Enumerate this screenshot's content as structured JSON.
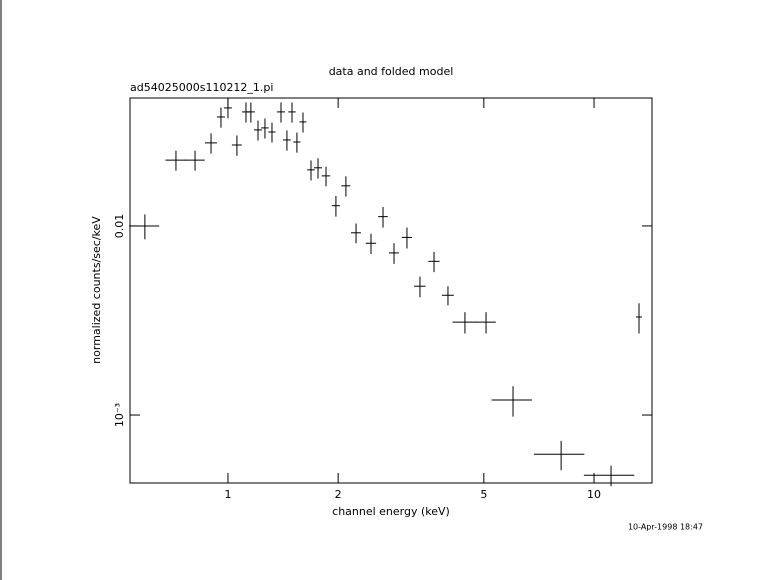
{
  "chart_data": {
    "type": "scatter",
    "title": "data and folded model",
    "subtitle": "ad54025000s110212_1.pi",
    "x_label": "channel energy (keV)",
    "y_label": "normalized counts/sec/keV",
    "annotation": "10-Apr-1998 18:47",
    "color": "#000000",
    "log_x": true,
    "log_y": true,
    "xlim": [
      0.54,
      14.4
    ],
    "ylim": [
      0.000437,
      0.0475
    ],
    "xticks": [
      1,
      2,
      5,
      10
    ],
    "yticks": [
      {
        "value": 0.001,
        "label": "10⁻³"
      },
      0.01
    ],
    "x": [
      0.593,
      0.721,
      0.813,
      0.899,
      0.957,
      1.0,
      1.058,
      1.12,
      1.155,
      1.208,
      1.262,
      1.319,
      1.396,
      1.449,
      1.496,
      1.543,
      1.603,
      1.686,
      1.762,
      1.853,
      1.972,
      2.1,
      2.238,
      2.459,
      2.652,
      2.842,
      3.083,
      3.346,
      3.655,
      3.99,
      4.44,
      5.07,
      6.008,
      8.13,
      11.13,
      13.27
    ],
    "xerr": [
      0.056,
      0.046,
      0.051,
      0.034,
      0.024,
      0.025,
      0.033,
      0.028,
      0.029,
      0.03,
      0.03,
      0.03,
      0.035,
      0.035,
      0.035,
      0.035,
      0.035,
      0.04,
      0.045,
      0.05,
      0.05,
      0.06,
      0.07,
      0.08,
      0.08,
      0.09,
      0.1,
      0.12,
      0.13,
      0.15,
      0.335,
      0.32,
      0.76,
      1.28,
      1.75,
      0.25
    ],
    "values": [
      0.01,
      0.0223,
      0.0223,
      0.0275,
      0.0377,
      0.0421,
      0.0268,
      0.0401,
      0.0401,
      0.0322,
      0.033,
      0.0314,
      0.0401,
      0.0285,
      0.0401,
      0.0278,
      0.0355,
      0.0198,
      0.0203,
      0.0184,
      0.0128,
      0.0163,
      0.0092,
      0.0081,
      0.0112,
      0.0072,
      0.0087,
      0.0048,
      0.0065,
      0.0043,
      0.0031,
      0.0031,
      0.0012,
      0.00062,
      0.00048,
      0.0033
    ],
    "yerr": [
      0.0015,
      0.0027,
      0.0027,
      0.0034,
      0.0046,
      0.005,
      0.0033,
      0.0049,
      0.0049,
      0.0039,
      0.004,
      0.0038,
      0.0049,
      0.0035,
      0.0049,
      0.0034,
      0.0043,
      0.0024,
      0.0025,
      0.0022,
      0.0016,
      0.002,
      0.0011,
      0.001,
      0.0014,
      0.0009,
      0.0011,
      0.0006,
      0.0008,
      0.0005,
      0.0004,
      0.0004,
      0.00022,
      0.00011,
      6e-05,
      0.0006
    ]
  }
}
